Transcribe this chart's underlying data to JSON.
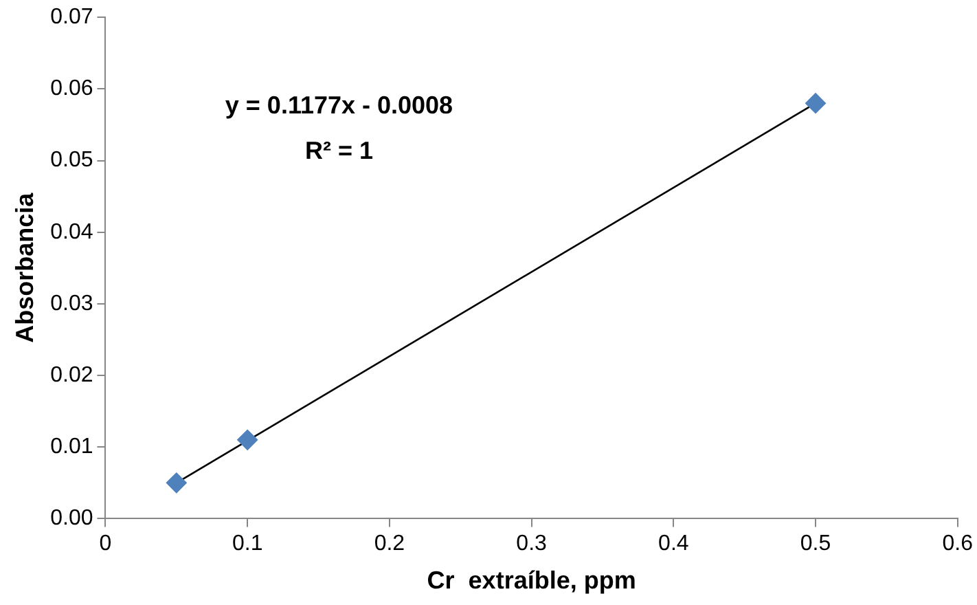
{
  "chart_data": {
    "type": "scatter",
    "xlabel": "Cr  extraíble, ppm",
    "ylabel": "Absorbancia",
    "xlim": [
      0,
      0.6
    ],
    "xticks": [
      0,
      0.1,
      0.2,
      0.3,
      0.4,
      0.5,
      0.6
    ],
    "ylim": [
      0,
      0.07
    ],
    "yticks": [
      {
        "value": 0,
        "label": "0.00"
      },
      {
        "value": 0.01,
        "label": "0.01"
      },
      {
        "value": 0.02,
        "label": "0.02"
      },
      {
        "value": 0.03,
        "label": "0.03"
      },
      {
        "value": 0.04,
        "label": "0.04"
      },
      {
        "value": 0.05,
        "label": "0.05"
      },
      {
        "value": 0.06,
        "label": "0.06"
      },
      {
        "value": 0.07,
        "label": "0.07"
      }
    ],
    "series": [
      {
        "color": "#4f81bd",
        "x": [
          0.05,
          0.1,
          0.5
        ],
        "values": [
          0.005,
          0.011,
          0.058
        ],
        "marker": "diamond"
      },
      {
        "type": "line",
        "color": "#000000",
        "x": [
          0.05,
          0.5
        ],
        "values": [
          0.005,
          0.058
        ],
        "marker": "none",
        "line_style": "solid"
      }
    ],
    "annotations": [
      "y = 0.1177x - 0.0008",
      "R² = 1"
    ],
    "grid": false,
    "legend": false
  }
}
